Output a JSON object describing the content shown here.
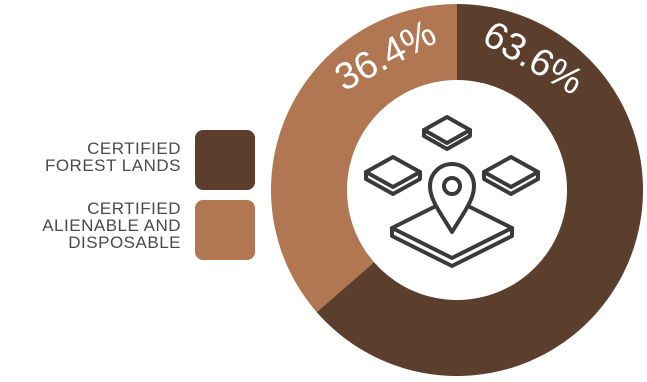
{
  "chart_data": {
    "type": "pie",
    "variant": "donut",
    "categories": [
      "CERTIFIED\nFOREST LANDS",
      "CERTIFIED\nALIENABLE AND\nDISPOSABLE"
    ],
    "values": [
      63.6,
      36.4
    ],
    "value_labels": [
      "63.6%",
      "36.4%"
    ],
    "colors": [
      "#5b3e2b",
      "#b07752"
    ],
    "legend_position": "left",
    "center_icon": "map-pin-blocks-icon"
  }
}
